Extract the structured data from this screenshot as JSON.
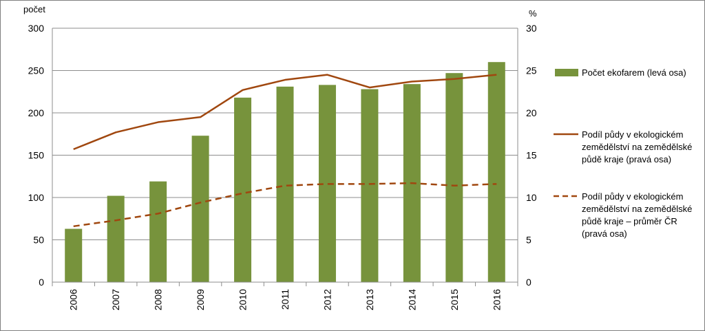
{
  "chart_data": {
    "type": "bar+line",
    "categories": [
      "2006",
      "2007",
      "2008",
      "2009",
      "2010",
      "2011",
      "2012",
      "2013",
      "2014",
      "2015",
      "2016"
    ],
    "left_axis": {
      "label": "počet",
      "min": 0,
      "max": 300,
      "ticks": [
        "0",
        "50",
        "100",
        "150",
        "200",
        "250",
        "300"
      ]
    },
    "right_axis": {
      "label": "%",
      "min": 0,
      "max": 30,
      "ticks": [
        "0",
        "5",
        "10",
        "15",
        "20",
        "25",
        "30"
      ]
    },
    "grid": "horizontal",
    "legend_placement": "right",
    "series": [
      {
        "name": "Počet ekofarem (levá osa)",
        "kind": "bar",
        "axis": "left",
        "color": "#77933c",
        "values": [
          63,
          102,
          119,
          173,
          218,
          231,
          233,
          228,
          234,
          247,
          260
        ]
      },
      {
        "name": "Podíl půdy v ekologickém zemědělství na zemědělské půdě kraje (pravá osa)",
        "kind": "line",
        "style": "solid",
        "axis": "right",
        "color": "#a0470f",
        "values": [
          15.7,
          17.7,
          18.9,
          19.5,
          22.7,
          23.9,
          24.5,
          23.0,
          23.7,
          24.0,
          24.5
        ]
      },
      {
        "name": "Podíl půdy v ekologickém zemědělství na zemědělské půdě kraje – průměr ČR (pravá osa)",
        "kind": "line",
        "style": "dashed",
        "axis": "right",
        "color": "#a0470f",
        "values": [
          6.6,
          7.3,
          8.1,
          9.4,
          10.5,
          11.4,
          11.6,
          11.6,
          11.7,
          11.4,
          11.6
        ]
      }
    ]
  }
}
